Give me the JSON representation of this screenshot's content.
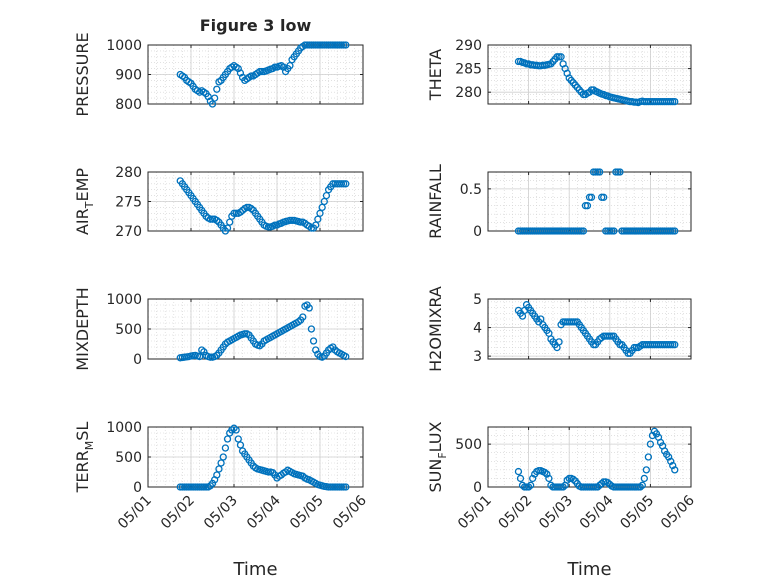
{
  "figure": {
    "title": "Figure 3 low",
    "xlabel": "Time",
    "x_tick_labels": [
      "05/01",
      "05/02",
      "05/03",
      "05/04",
      "05/05",
      "05/06"
    ],
    "marker_color": "#0072BD",
    "grid_color": "#d0d0d0",
    "axis_color": "#262626"
  },
  "chart_data": [
    {
      "type": "scatter",
      "ylabel": "PRESSURE",
      "xlim": [
        "05/01",
        "05/06"
      ],
      "ylim": [
        800,
        1000
      ],
      "yticks": [
        800,
        900,
        1000
      ],
      "x": [
        1.75,
        1.8,
        1.85,
        1.9,
        1.95,
        2.0,
        2.05,
        2.1,
        2.15,
        2.2,
        2.25,
        2.3,
        2.35,
        2.4,
        2.45,
        2.5,
        2.55,
        2.6,
        2.65,
        2.7,
        2.75,
        2.8,
        2.85,
        2.9,
        2.95,
        3.0,
        3.05,
        3.1,
        3.15,
        3.2,
        3.25,
        3.3,
        3.35,
        3.4,
        3.45,
        3.5,
        3.55,
        3.6,
        3.65,
        3.7,
        3.75,
        3.8,
        3.85,
        3.9,
        3.95,
        4.0,
        4.05,
        4.1,
        4.15,
        4.2,
        4.25,
        4.3,
        4.35,
        4.4,
        4.45,
        4.5,
        4.55,
        4.6,
        4.65,
        4.7,
        4.75,
        4.8,
        4.85,
        4.9,
        4.95,
        5.0,
        5.05,
        5.1,
        5.15,
        5.2,
        5.25,
        5.3,
        5.35,
        5.4,
        5.45,
        5.5,
        5.55,
        5.6
      ],
      "y": [
        900,
        895,
        890,
        880,
        875,
        870,
        860,
        850,
        845,
        840,
        845,
        840,
        835,
        825,
        810,
        800,
        820,
        850,
        875,
        880,
        890,
        900,
        910,
        920,
        925,
        930,
        925,
        920,
        905,
        890,
        880,
        885,
        890,
        895,
        895,
        900,
        905,
        910,
        910,
        910,
        912,
        915,
        918,
        920,
        925,
        925,
        928,
        930,
        925,
        910,
        920,
        930,
        950,
        960,
        970,
        980,
        990,
        995,
        1000,
        1000,
        1000,
        1000,
        1000,
        1000,
        1000,
        1000,
        1000,
        1000,
        1000,
        1000,
        1000,
        1000,
        1000,
        1000,
        1000,
        1000,
        1000,
        1000
      ]
    },
    {
      "type": "scatter",
      "ylabel": "THETA",
      "xlim": [
        "05/01",
        "05/06"
      ],
      "ylim": [
        277.5,
        290
      ],
      "yticks": [
        280,
        285,
        290
      ],
      "x": [
        1.75,
        1.8,
        1.85,
        1.9,
        1.95,
        2.0,
        2.05,
        2.1,
        2.15,
        2.2,
        2.25,
        2.3,
        2.35,
        2.4,
        2.45,
        2.5,
        2.55,
        2.6,
        2.65,
        2.7,
        2.75,
        2.8,
        2.85,
        2.9,
        2.95,
        3.0,
        3.05,
        3.1,
        3.15,
        3.2,
        3.25,
        3.3,
        3.35,
        3.4,
        3.45,
        3.5,
        3.55,
        3.6,
        3.65,
        3.7,
        3.75,
        3.8,
        3.85,
        3.9,
        3.95,
        4.0,
        4.05,
        4.1,
        4.15,
        4.2,
        4.25,
        4.3,
        4.35,
        4.4,
        4.45,
        4.5,
        4.55,
        4.6,
        4.65,
        4.7,
        4.75,
        4.8,
        4.85,
        4.9,
        4.95,
        5.0,
        5.05,
        5.1,
        5.15,
        5.2,
        5.25,
        5.3,
        5.35,
        5.4,
        5.45,
        5.5,
        5.55,
        5.6
      ],
      "y": [
        286.5,
        286.5,
        286.3,
        286.2,
        286,
        286,
        285.8,
        285.8,
        285.7,
        285.7,
        285.6,
        285.6,
        285.7,
        285.7,
        285.8,
        285.9,
        286,
        286.5,
        287,
        287.5,
        287.5,
        287.5,
        286,
        285,
        284,
        283,
        282.5,
        282,
        281.5,
        281,
        280.5,
        280,
        279.5,
        279.5,
        279.8,
        280,
        280.5,
        280.5,
        280.2,
        280,
        279.8,
        279.6,
        279.5,
        279.3,
        279.2,
        279,
        278.9,
        278.8,
        278.7,
        278.6,
        278.5,
        278.4,
        278.3,
        278.2,
        278.1,
        278,
        278,
        277.9,
        277.9,
        277.8,
        278,
        278.1,
        278,
        278,
        278,
        278,
        278,
        278,
        278,
        278,
        278,
        278,
        278,
        278,
        278,
        278,
        278,
        278
      ]
    },
    {
      "type": "scatter",
      "ylabel": "AIR_TEMP",
      "xlim": [
        "05/01",
        "05/06"
      ],
      "ylim": [
        270,
        280
      ],
      "yticks": [
        270,
        275,
        280
      ],
      "x": [
        1.75,
        1.8,
        1.85,
        1.9,
        1.95,
        2.0,
        2.05,
        2.1,
        2.15,
        2.2,
        2.25,
        2.3,
        2.35,
        2.4,
        2.45,
        2.5,
        2.55,
        2.6,
        2.65,
        2.7,
        2.75,
        2.8,
        2.85,
        2.9,
        2.95,
        3.0,
        3.05,
        3.1,
        3.15,
        3.2,
        3.25,
        3.3,
        3.35,
        3.4,
        3.45,
        3.5,
        3.55,
        3.6,
        3.65,
        3.7,
        3.75,
        3.8,
        3.85,
        3.9,
        3.95,
        4.0,
        4.05,
        4.1,
        4.15,
        4.2,
        4.25,
        4.3,
        4.35,
        4.4,
        4.45,
        4.5,
        4.55,
        4.6,
        4.65,
        4.7,
        4.75,
        4.8,
        4.85,
        4.9,
        4.95,
        5.0,
        5.05,
        5.1,
        5.15,
        5.2,
        5.25,
        5.3,
        5.35,
        5.4,
        5.45,
        5.5,
        5.55,
        5.6
      ],
      "y": [
        278.5,
        278,
        277.5,
        277,
        276.5,
        276,
        275.5,
        275,
        274.5,
        274,
        273.5,
        273,
        272.5,
        272.2,
        272,
        272,
        272,
        271.8,
        271.5,
        271,
        270.5,
        270,
        270.5,
        271.5,
        272.5,
        273,
        273,
        273,
        273.2,
        273.5,
        273.8,
        274,
        274,
        273.8,
        273.5,
        273,
        272.5,
        272,
        271.5,
        271,
        270.8,
        270.7,
        270.7,
        270.8,
        271,
        271,
        271.2,
        271.3,
        271.5,
        271.6,
        271.7,
        271.8,
        271.8,
        271.8,
        271.7,
        271.6,
        271.5,
        271.5,
        271.3,
        271,
        270.8,
        270.5,
        270.5,
        271,
        272,
        273,
        274,
        275,
        276,
        277,
        277.5,
        278,
        278,
        278,
        278,
        278,
        278,
        278
      ]
    },
    {
      "type": "scatter",
      "ylabel": "RAINFALL",
      "xlim": [
        "05/01",
        "05/06"
      ],
      "ylim": [
        0,
        0.7
      ],
      "yticks": [
        0,
        0.5
      ],
      "x": [
        1.75,
        1.8,
        1.85,
        1.9,
        1.95,
        2.0,
        2.05,
        2.1,
        2.15,
        2.2,
        2.25,
        2.3,
        2.35,
        2.4,
        2.45,
        2.5,
        2.55,
        2.6,
        2.65,
        2.7,
        2.75,
        2.8,
        2.85,
        2.9,
        2.95,
        3.0,
        3.05,
        3.1,
        3.15,
        3.2,
        3.25,
        3.3,
        3.35,
        3.4,
        3.45,
        3.5,
        3.55,
        3.6,
        3.65,
        3.7,
        3.75,
        3.8,
        3.85,
        3.9,
        3.95,
        4.0,
        4.05,
        4.1,
        4.15,
        4.2,
        4.25,
        4.3,
        4.35,
        4.4,
        4.45,
        4.5,
        4.55,
        4.6,
        4.65,
        4.7,
        4.75,
        4.8,
        4.85,
        4.9,
        4.95,
        5.0,
        5.05,
        5.1,
        5.15,
        5.2,
        5.25,
        5.3,
        5.35,
        5.4,
        5.45,
        5.5,
        5.55,
        5.6
      ],
      "y": [
        0,
        0,
        0,
        0,
        0,
        0,
        0,
        0,
        0,
        0,
        0,
        0,
        0,
        0,
        0,
        0,
        0,
        0,
        0,
        0,
        0,
        0,
        0,
        0,
        0,
        0,
        0,
        0,
        0,
        0,
        0,
        0,
        0,
        0.3,
        0.3,
        0.4,
        0.4,
        0.7,
        0.7,
        0.7,
        0.7,
        0.4,
        0.4,
        0,
        0,
        0,
        0,
        0,
        0.7,
        0.7,
        0.7,
        0,
        0,
        0,
        0,
        0,
        0,
        0,
        0,
        0,
        0,
        0,
        0,
        0,
        0,
        0,
        0,
        0,
        0,
        0,
        0,
        0,
        0,
        0,
        0,
        0,
        0,
        0
      ]
    },
    {
      "type": "scatter",
      "ylabel": "MIXDEPTH",
      "xlim": [
        "05/01",
        "05/06"
      ],
      "ylim": [
        0,
        1000
      ],
      "yticks": [
        0,
        500,
        1000
      ],
      "x": [
        1.75,
        1.8,
        1.85,
        1.9,
        1.95,
        2.0,
        2.05,
        2.1,
        2.15,
        2.2,
        2.25,
        2.3,
        2.35,
        2.4,
        2.45,
        2.5,
        2.55,
        2.6,
        2.65,
        2.7,
        2.75,
        2.8,
        2.85,
        2.9,
        2.95,
        3.0,
        3.05,
        3.1,
        3.15,
        3.2,
        3.25,
        3.3,
        3.35,
        3.4,
        3.45,
        3.5,
        3.55,
        3.6,
        3.65,
        3.7,
        3.75,
        3.8,
        3.85,
        3.9,
        3.95,
        4.0,
        4.05,
        4.1,
        4.15,
        4.2,
        4.25,
        4.3,
        4.35,
        4.4,
        4.45,
        4.5,
        4.55,
        4.6,
        4.65,
        4.7,
        4.75,
        4.8,
        4.85,
        4.9,
        4.95,
        5.0,
        5.05,
        5.1,
        5.15,
        5.2,
        5.25,
        5.3,
        5.35,
        5.4,
        5.45,
        5.5,
        5.55,
        5.6
      ],
      "y": [
        20,
        25,
        30,
        35,
        40,
        50,
        55,
        60,
        50,
        40,
        150,
        120,
        60,
        40,
        30,
        30,
        40,
        60,
        100,
        150,
        200,
        250,
        280,
        300,
        320,
        340,
        360,
        380,
        400,
        410,
        420,
        420,
        400,
        350,
        300,
        250,
        230,
        220,
        250,
        300,
        320,
        340,
        360,
        380,
        400,
        420,
        440,
        460,
        480,
        500,
        520,
        540,
        560,
        580,
        600,
        620,
        650,
        700,
        880,
        900,
        850,
        500,
        300,
        150,
        80,
        40,
        30,
        50,
        100,
        150,
        180,
        200,
        150,
        120,
        100,
        80,
        60,
        40
      ]
    },
    {
      "type": "scatter",
      "ylabel": "H2OMIXRA",
      "xlim": [
        "05/01",
        "05/06"
      ],
      "ylim": [
        2.9,
        5.0
      ],
      "yticks": [
        3,
        4,
        5
      ],
      "x": [
        1.75,
        1.8,
        1.85,
        1.9,
        1.95,
        2.0,
        2.05,
        2.1,
        2.15,
        2.2,
        2.25,
        2.3,
        2.35,
        2.4,
        2.45,
        2.5,
        2.55,
        2.6,
        2.65,
        2.7,
        2.75,
        2.8,
        2.85,
        2.9,
        2.95,
        3.0,
        3.05,
        3.1,
        3.15,
        3.2,
        3.25,
        3.3,
        3.35,
        3.4,
        3.45,
        3.5,
        3.55,
        3.6,
        3.65,
        3.7,
        3.75,
        3.8,
        3.85,
        3.9,
        3.95,
        4.0,
        4.05,
        4.1,
        4.15,
        4.2,
        4.25,
        4.3,
        4.35,
        4.4,
        4.45,
        4.5,
        4.55,
        4.6,
        4.65,
        4.7,
        4.75,
        4.8,
        4.85,
        4.9,
        4.95,
        5.0,
        5.05,
        5.1,
        5.15,
        5.2,
        5.25,
        5.3,
        5.35,
        5.4,
        5.45,
        5.5,
        5.55,
        5.6
      ],
      "y": [
        4.6,
        4.5,
        4.4,
        4.6,
        4.8,
        4.7,
        4.6,
        4.5,
        4.4,
        4.3,
        4.2,
        4.3,
        4.1,
        4.0,
        3.9,
        3.8,
        3.6,
        3.5,
        3.4,
        3.3,
        3.5,
        4.1,
        4.2,
        4.2,
        4.2,
        4.2,
        4.2,
        4.2,
        4.2,
        4.2,
        4.1,
        4.0,
        3.9,
        3.8,
        3.7,
        3.6,
        3.5,
        3.4,
        3.4,
        3.5,
        3.6,
        3.65,
        3.7,
        3.7,
        3.7,
        3.7,
        3.7,
        3.7,
        3.6,
        3.5,
        3.4,
        3.4,
        3.3,
        3.2,
        3.1,
        3.1,
        3.2,
        3.3,
        3.3,
        3.3,
        3.35,
        3.4,
        3.4,
        3.4,
        3.4,
        3.4,
        3.4,
        3.4,
        3.4,
        3.4,
        3.4,
        3.4,
        3.4,
        3.4,
        3.4,
        3.4,
        3.4,
        3.4
      ]
    },
    {
      "type": "scatter",
      "ylabel": "TERR_MSL",
      "xlim": [
        "05/01",
        "05/06"
      ],
      "ylim": [
        0,
        1000
      ],
      "yticks": [
        0,
        500,
        1000
      ],
      "x": [
        1.75,
        1.8,
        1.85,
        1.9,
        1.95,
        2.0,
        2.05,
        2.1,
        2.15,
        2.2,
        2.25,
        2.3,
        2.35,
        2.4,
        2.45,
        2.5,
        2.55,
        2.6,
        2.65,
        2.7,
        2.75,
        2.8,
        2.85,
        2.9,
        2.95,
        3.0,
        3.05,
        3.1,
        3.15,
        3.2,
        3.25,
        3.3,
        3.35,
        3.4,
        3.45,
        3.5,
        3.55,
        3.6,
        3.65,
        3.7,
        3.75,
        3.8,
        3.85,
        3.9,
        3.95,
        4.0,
        4.05,
        4.1,
        4.15,
        4.2,
        4.25,
        4.3,
        4.35,
        4.4,
        4.45,
        4.5,
        4.55,
        4.6,
        4.65,
        4.7,
        4.75,
        4.8,
        4.85,
        4.9,
        4.95,
        5.0,
        5.05,
        5.1,
        5.15,
        5.2,
        5.25,
        5.3,
        5.35,
        5.4,
        5.45,
        5.5,
        5.55,
        5.6
      ],
      "y": [
        0,
        0,
        0,
        0,
        0,
        0,
        0,
        0,
        0,
        0,
        0,
        0,
        0,
        0,
        20,
        60,
        120,
        200,
        300,
        400,
        500,
        650,
        800,
        900,
        950,
        980,
        950,
        800,
        700,
        600,
        550,
        500,
        450,
        400,
        350,
        320,
        300,
        290,
        280,
        270,
        260,
        250,
        250,
        240,
        200,
        150,
        180,
        200,
        230,
        250,
        280,
        260,
        240,
        220,
        210,
        200,
        190,
        180,
        150,
        130,
        120,
        100,
        80,
        60,
        40,
        30,
        20,
        10,
        5,
        0,
        0,
        0,
        0,
        0,
        0,
        0,
        0,
        0
      ]
    },
    {
      "type": "scatter",
      "ylabel": "SUN_FLUX",
      "xlim": [
        "05/01",
        "05/06"
      ],
      "ylim": [
        0,
        700
      ],
      "yticks": [
        0,
        500
      ],
      "x": [
        1.75,
        1.8,
        1.85,
        1.9,
        1.95,
        2.0,
        2.05,
        2.1,
        2.15,
        2.2,
        2.25,
        2.3,
        2.35,
        2.4,
        2.45,
        2.5,
        2.55,
        2.6,
        2.65,
        2.7,
        2.75,
        2.8,
        2.85,
        2.9,
        2.95,
        3.0,
        3.05,
        3.1,
        3.15,
        3.2,
        3.25,
        3.3,
        3.35,
        3.4,
        3.45,
        3.5,
        3.55,
        3.6,
        3.65,
        3.7,
        3.75,
        3.8,
        3.85,
        3.9,
        3.95,
        4.0,
        4.05,
        4.1,
        4.15,
        4.2,
        4.25,
        4.3,
        4.35,
        4.4,
        4.45,
        4.5,
        4.55,
        4.6,
        4.65,
        4.7,
        4.75,
        4.8,
        4.85,
        4.9,
        4.95,
        5.0,
        5.05,
        5.1,
        5.15,
        5.2,
        5.25,
        5.3,
        5.35,
        5.4,
        5.45,
        5.5,
        5.55,
        5.6
      ],
      "y": [
        180,
        100,
        20,
        0,
        0,
        0,
        20,
        100,
        150,
        180,
        190,
        190,
        180,
        170,
        150,
        100,
        20,
        0,
        0,
        0,
        0,
        0,
        0,
        20,
        80,
        100,
        100,
        90,
        70,
        40,
        10,
        0,
        0,
        0,
        0,
        0,
        0,
        0,
        0,
        0,
        20,
        40,
        60,
        60,
        50,
        30,
        10,
        0,
        0,
        0,
        0,
        0,
        0,
        0,
        0,
        0,
        0,
        0,
        0,
        0,
        0,
        20,
        100,
        200,
        350,
        500,
        600,
        650,
        620,
        580,
        520,
        480,
        420,
        380,
        350,
        300,
        250,
        200
      ]
    }
  ]
}
